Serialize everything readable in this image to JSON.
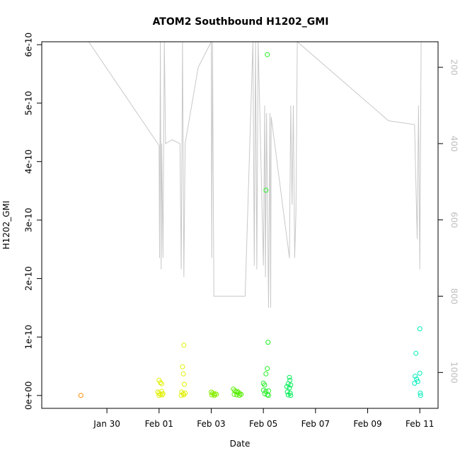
{
  "chart_data": {
    "type": "scatter",
    "title": "ATOM2 Southbound H1202_GMI",
    "xlabel": "Date",
    "ylabel": "H1202_GMI",
    "xlim": [
      -2.5,
      12.7
    ],
    "ylim": [
      -2.2e-11,
      6.05e-10
    ],
    "x_ticks": [
      {
        "x": 0,
        "label": "Jan 30"
      },
      {
        "x": 2,
        "label": "Feb 01"
      },
      {
        "x": 4,
        "label": "Feb 03"
      },
      {
        "x": 6,
        "label": "Feb 05"
      },
      {
        "x": 8,
        "label": "Feb 07"
      },
      {
        "x": 10,
        "label": "Feb 09"
      },
      {
        "x": 12,
        "label": "Feb 11"
      }
    ],
    "y_ticks": [
      {
        "v": 0,
        "label": "0e+00"
      },
      {
        "v": 1e-10,
        "label": "1e-10"
      },
      {
        "v": 2e-10,
        "label": "2e-10"
      },
      {
        "v": 3e-10,
        "label": "3e-10"
      },
      {
        "v": 4e-10,
        "label": "4e-10"
      },
      {
        "v": 5e-10,
        "label": "5e-10"
      },
      {
        "v": 6e-10,
        "label": "6e-10"
      }
    ],
    "right_axis": {
      "lim": [
        1094,
        133
      ],
      "ticks": [
        {
          "v": 200,
          "label": "200"
        },
        {
          "v": 400,
          "label": "400"
        },
        {
          "v": 600,
          "label": "600"
        },
        {
          "v": 800,
          "label": "800"
        },
        {
          "v": 1000,
          "label": "1000"
        }
      ],
      "color": "#bebebe"
    },
    "depth_line": [
      [
        -0.7,
        133
      ],
      [
        2.0,
        405
      ],
      [
        2.02,
        700
      ],
      [
        2.05,
        133
      ],
      [
        2.08,
        730
      ],
      [
        2.1,
        400
      ],
      [
        2.15,
        700
      ],
      [
        2.2,
        133
      ],
      [
        2.25,
        400
      ],
      [
        2.5,
        390
      ],
      [
        2.8,
        400
      ],
      [
        2.85,
        730
      ],
      [
        2.9,
        133
      ],
      [
        2.95,
        750
      ],
      [
        3.0,
        400
      ],
      [
        3.5,
        200
      ],
      [
        4.0,
        133
      ],
      [
        4.02,
        700
      ],
      [
        4.05,
        133
      ],
      [
        4.1,
        800
      ],
      [
        5.3,
        800
      ],
      [
        5.6,
        133
      ],
      [
        5.65,
        720
      ],
      [
        5.7,
        133
      ],
      [
        5.75,
        730
      ],
      [
        5.8,
        133
      ],
      [
        6.0,
        720
      ],
      [
        6.05,
        300
      ],
      [
        6.08,
        750
      ],
      [
        6.12,
        320
      ],
      [
        6.2,
        830
      ],
      [
        6.25,
        320
      ],
      [
        6.28,
        830
      ],
      [
        6.3,
        330
      ],
      [
        7.0,
        700
      ],
      [
        7.05,
        300
      ],
      [
        7.1,
        560
      ],
      [
        7.15,
        300
      ],
      [
        7.2,
        700
      ],
      [
        7.25,
        580
      ],
      [
        7.3,
        133
      ],
      [
        10.8,
        340
      ],
      [
        11.8,
        350
      ],
      [
        11.9,
        650
      ],
      [
        11.95,
        300
      ],
      [
        12.0,
        730
      ],
      [
        12.05,
        133
      ]
    ],
    "points": [
      {
        "x": -1.0,
        "y": 0.0,
        "color": "#ff8c00"
      },
      {
        "x": 2.0,
        "y": 2.6e-11,
        "color": "#e0f000"
      },
      {
        "x": 2.05,
        "y": 2.2e-11,
        "color": "#e0f000"
      },
      {
        "x": 2.1,
        "y": 2e-11,
        "color": "#e0f000"
      },
      {
        "x": 1.95,
        "y": 6e-12,
        "color": "#e0f000"
      },
      {
        "x": 2.0,
        "y": 4e-12,
        "color": "#e0f000"
      },
      {
        "x": 2.05,
        "y": 2e-12,
        "color": "#e0f000"
      },
      {
        "x": 2.1,
        "y": 7e-12,
        "color": "#e0f000"
      },
      {
        "x": 2.15,
        "y": 3e-12,
        "color": "#e0f000"
      },
      {
        "x": 2.0,
        "y": 0.0,
        "color": "#e0f000"
      },
      {
        "x": 2.12,
        "y": 1e-12,
        "color": "#e0f000"
      },
      {
        "x": 2.95,
        "y": 8.6e-11,
        "color": "#e0f000"
      },
      {
        "x": 2.9,
        "y": 4.9e-11,
        "color": "#e0f000"
      },
      {
        "x": 2.93,
        "y": 3.7e-11,
        "color": "#e0f000"
      },
      {
        "x": 2.97,
        "y": 1.9e-11,
        "color": "#e0f000"
      },
      {
        "x": 2.87,
        "y": 6e-12,
        "color": "#e0f000"
      },
      {
        "x": 2.92,
        "y": 3e-12,
        "color": "#e0f000"
      },
      {
        "x": 2.95,
        "y": 1e-12,
        "color": "#e0f000"
      },
      {
        "x": 3.0,
        "y": 4e-12,
        "color": "#e0f000"
      },
      {
        "x": 2.85,
        "y": 0.0,
        "color": "#e0f000"
      },
      {
        "x": 4.0,
        "y": 6e-12,
        "color": "#88ee00"
      },
      {
        "x": 4.05,
        "y": 4e-12,
        "color": "#88ee00"
      },
      {
        "x": 4.1,
        "y": 2e-12,
        "color": "#88ee00"
      },
      {
        "x": 4.15,
        "y": 3e-12,
        "color": "#88ee00"
      },
      {
        "x": 4.02,
        "y": 1e-12,
        "color": "#88ee00"
      },
      {
        "x": 4.12,
        "y": 0.0,
        "color": "#88ee00"
      },
      {
        "x": 4.2,
        "y": 2e-12,
        "color": "#88ee00"
      },
      {
        "x": 4.85,
        "y": 1.1e-11,
        "color": "#55ee00"
      },
      {
        "x": 4.9,
        "y": 8e-12,
        "color": "#55ee00"
      },
      {
        "x": 4.95,
        "y": 6e-12,
        "color": "#55ee00"
      },
      {
        "x": 5.0,
        "y": 7e-12,
        "color": "#55ee00"
      },
      {
        "x": 5.05,
        "y": 5e-12,
        "color": "#55ee00"
      },
      {
        "x": 5.1,
        "y": 3e-12,
        "color": "#55ee00"
      },
      {
        "x": 4.88,
        "y": 2e-12,
        "color": "#55ee00"
      },
      {
        "x": 4.98,
        "y": 1e-12,
        "color": "#55ee00"
      },
      {
        "x": 5.08,
        "y": 0.0,
        "color": "#55ee00"
      },
      {
        "x": 5.15,
        "y": 2e-12,
        "color": "#55ee00"
      },
      {
        "x": 6.15,
        "y": 5.83e-10,
        "color": "#22ee22"
      },
      {
        "x": 6.1,
        "y": 3.51e-10,
        "color": "#22ee22"
      },
      {
        "x": 6.18,
        "y": 9.1e-11,
        "color": "#22ee22"
      },
      {
        "x": 6.15,
        "y": 4.6e-11,
        "color": "#22ee22"
      },
      {
        "x": 6.1,
        "y": 3.7e-11,
        "color": "#22ee22"
      },
      {
        "x": 6.0,
        "y": 2.1e-11,
        "color": "#22ee22"
      },
      {
        "x": 6.05,
        "y": 1.8e-11,
        "color": "#22ee22"
      },
      {
        "x": 6.0,
        "y": 9e-12,
        "color": "#22ee22"
      },
      {
        "x": 6.1,
        "y": 7e-12,
        "color": "#22ee22"
      },
      {
        "x": 6.2,
        "y": 8e-12,
        "color": "#22ee22"
      },
      {
        "x": 6.05,
        "y": 3e-12,
        "color": "#22ee22"
      },
      {
        "x": 6.15,
        "y": 1e-12,
        "color": "#22ee22"
      },
      {
        "x": 6.2,
        "y": 0.0,
        "color": "#22ee22"
      },
      {
        "x": 7.0,
        "y": 3.1e-11,
        "color": "#00ee55"
      },
      {
        "x": 7.02,
        "y": 2.6e-11,
        "color": "#00ee55"
      },
      {
        "x": 6.95,
        "y": 2e-11,
        "color": "#00ee55"
      },
      {
        "x": 7.05,
        "y": 1.8e-11,
        "color": "#00ee55"
      },
      {
        "x": 6.9,
        "y": 1.5e-11,
        "color": "#00ee55"
      },
      {
        "x": 7.0,
        "y": 1.3e-11,
        "color": "#00ee55"
      },
      {
        "x": 6.92,
        "y": 6e-12,
        "color": "#00ee55"
      },
      {
        "x": 7.03,
        "y": 4e-12,
        "color": "#00ee55"
      },
      {
        "x": 6.95,
        "y": 1e-12,
        "color": "#00ee55"
      },
      {
        "x": 7.05,
        "y": 0.0,
        "color": "#00ee55"
      },
      {
        "x": 12.0,
        "y": 1.14e-10,
        "color": "#00eebb"
      },
      {
        "x": 11.85,
        "y": 7.2e-11,
        "color": "#00eebb"
      },
      {
        "x": 12.0,
        "y": 3.8e-11,
        "color": "#00eebb"
      },
      {
        "x": 11.82,
        "y": 3.3e-11,
        "color": "#00eebb"
      },
      {
        "x": 11.88,
        "y": 2.8e-11,
        "color": "#00eebb"
      },
      {
        "x": 11.92,
        "y": 2.4e-11,
        "color": "#00eebb"
      },
      {
        "x": 11.8,
        "y": 2.1e-11,
        "color": "#00eebb"
      },
      {
        "x": 12.02,
        "y": 4e-12,
        "color": "#00eebb"
      },
      {
        "x": 12.03,
        "y": 0.0,
        "color": "#00eebb"
      }
    ],
    "grid": false,
    "legend": "none"
  }
}
